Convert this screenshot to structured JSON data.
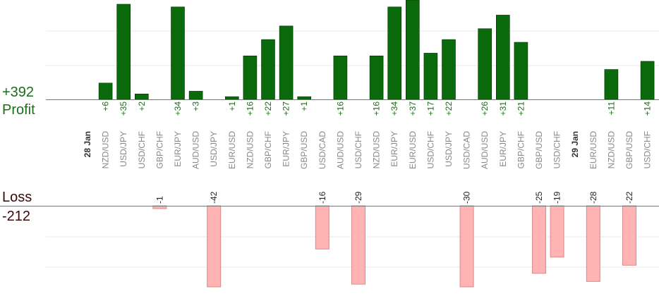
{
  "summary": {
    "profit_total": "+392",
    "profit_label": "Profit",
    "loss_label": "Loss",
    "loss_total": "-212"
  },
  "colors": {
    "profit_bar": "#0b6a0b",
    "profit_bar_edge": "#003300",
    "profit_text": "#1a6e1a",
    "loss_bar": "#ffb3b3",
    "loss_bar_edge": "#d98a8a",
    "loss_text": "#3a0a0a",
    "grid": "#e8e8e8",
    "axis": "#777777",
    "label": "#888888"
  },
  "chart_data": {
    "type": "bar",
    "title": "",
    "grid": true,
    "profit_scale_max": 35,
    "loss_scale_max": 30,
    "categories": [
      {
        "label": "28 Jan",
        "date": true
      },
      {
        "label": "NZD/USD",
        "profit": 6
      },
      {
        "label": "USD/JPY",
        "profit": 35
      },
      {
        "label": "USD/CHF",
        "profit": 2
      },
      {
        "label": "GBP/CHF",
        "loss": -1
      },
      {
        "label": "EUR/JPY",
        "profit": 34
      },
      {
        "label": "AUD/USD",
        "profit": 3
      },
      {
        "label": "USD/JPY",
        "loss": -42
      },
      {
        "label": "EUR/USD",
        "profit": 1
      },
      {
        "label": "NZD/USD",
        "profit": 16
      },
      {
        "label": "GBP/CHF",
        "profit": 22
      },
      {
        "label": "EUR/JPY",
        "profit": 27
      },
      {
        "label": "GBP/USD",
        "profit": 1
      },
      {
        "label": "USD/CAD",
        "loss": -16
      },
      {
        "label": "AUD/USD",
        "profit": 16
      },
      {
        "label": "USD/CHF",
        "loss": -29
      },
      {
        "label": "NZD/USD",
        "profit": 16
      },
      {
        "label": "EUR/JPY",
        "profit": 34
      },
      {
        "label": "EUR/USD",
        "profit": 37
      },
      {
        "label": "USD/CHF",
        "profit": 17
      },
      {
        "label": "USD/JPY",
        "profit": 22
      },
      {
        "label": "USD/CAD",
        "loss": -30
      },
      {
        "label": "AUD/USD",
        "profit": 26
      },
      {
        "label": "EUR/JPY",
        "profit": 31
      },
      {
        "label": "GBP/CHF",
        "profit": 21
      },
      {
        "label": "GBP/USD",
        "loss": -25
      },
      {
        "label": "USD/CHF",
        "loss": -19
      },
      {
        "label": "29 Jan",
        "date": true
      },
      {
        "label": "EUR/USD",
        "loss": -28
      },
      {
        "label": "NZD/USD",
        "profit": 11
      },
      {
        "label": "GBP/USD",
        "loss": -22
      },
      {
        "label": "USD/CHF",
        "profit": 14
      }
    ]
  }
}
